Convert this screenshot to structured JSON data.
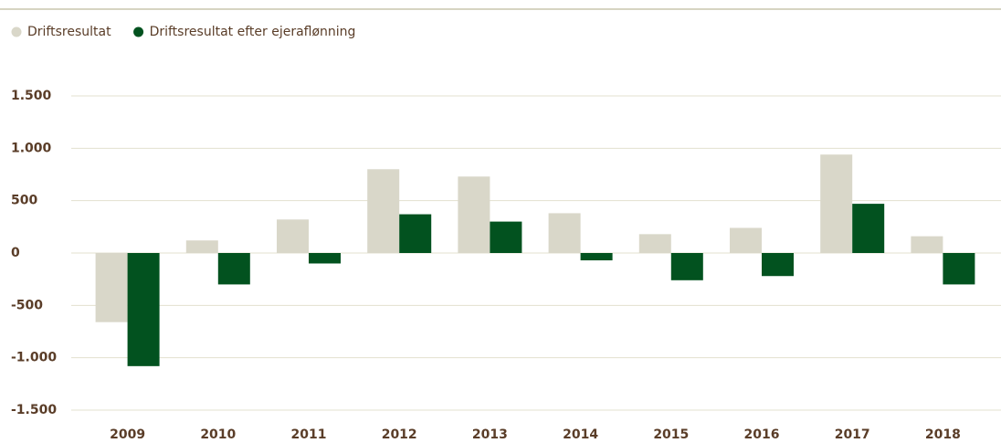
{
  "chart_data": {
    "type": "bar",
    "categories": [
      "2009",
      "2010",
      "2011",
      "2012",
      "2013",
      "2014",
      "2015",
      "2016",
      "2017",
      "2018"
    ],
    "series": [
      {
        "name": "Driftsresultat",
        "color": "#d9d7c9",
        "values": [
          -660,
          120,
          320,
          800,
          730,
          380,
          180,
          240,
          940,
          160
        ]
      },
      {
        "name": "Driftsresultat efter ejeraflønning",
        "color": "#02521f",
        "values": [
          -1080,
          -300,
          -100,
          370,
          300,
          -70,
          -260,
          -220,
          470,
          -300
        ]
      }
    ],
    "ylim": [
      -1500,
      1500
    ],
    "yticks": [
      {
        "value": -1500,
        "label": "-1.500"
      },
      {
        "value": -1000,
        "label": "-1.000"
      },
      -500,
      0,
      500,
      {
        "value": 1000,
        "label": "1.000"
      },
      {
        "value": 1500,
        "label": "1.500"
      }
    ],
    "grid": true,
    "legend": "top-left"
  }
}
